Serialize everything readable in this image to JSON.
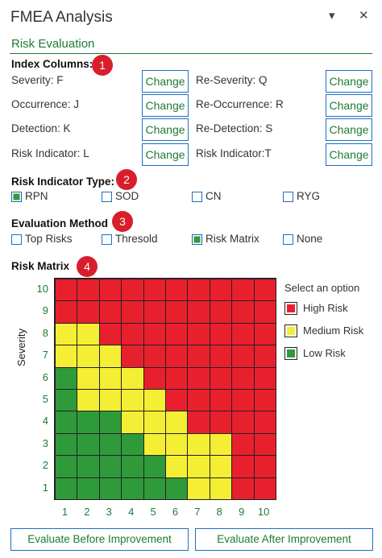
{
  "window": {
    "title": "FMEA Analysis",
    "pin_glyph": "▾",
    "close_glyph": "✕"
  },
  "section": "Risk Evaluation",
  "index_columns": {
    "heading": "Index Columns:",
    "badge": "1",
    "change_label": "Change",
    "left": [
      "Severity: F",
      "Occurrence: J",
      "Detection: K",
      "Risk Indicator: L"
    ],
    "right": [
      "Re-Severity: Q",
      "Re-Occurrence: R",
      "Re-Detection: S",
      "Risk Indicator:T"
    ]
  },
  "risk_indicator_type": {
    "heading": "Risk Indicator Type:",
    "badge": "2",
    "options": [
      {
        "label": "RPN",
        "checked": true
      },
      {
        "label": "SOD",
        "checked": false
      },
      {
        "label": "CN",
        "checked": false
      },
      {
        "label": "RYG",
        "checked": false
      }
    ]
  },
  "evaluation_method": {
    "heading": "Evaluation Method",
    "badge": "3",
    "options": [
      {
        "label": "Top Risks",
        "checked": false
      },
      {
        "label": "Thresold",
        "checked": false
      },
      {
        "label": "Risk Matrix",
        "checked": true
      },
      {
        "label": "None",
        "checked": false
      }
    ]
  },
  "risk_matrix": {
    "heading": "Risk Matrix",
    "badge": "4",
    "y_title": "Severity",
    "x_ticks": [
      "1",
      "2",
      "3",
      "4",
      "5",
      "6",
      "7",
      "8",
      "9",
      "10"
    ],
    "y_ticks": [
      "10",
      "9",
      "8",
      "7",
      "6",
      "5",
      "4",
      "3",
      "2",
      "1"
    ],
    "rows_top_to_bottom": [
      "RRRRRRRRRR",
      "RRRRRRRRRR",
      "YYRRRRRRRR",
      "YYYRRRRRRR",
      "GYYYRRRRRR",
      "GYYYYRRRRR",
      "GGGYYYRRRR",
      "GGGGYYYYRR",
      "GGGGGYYYRR",
      "GGGGGGYYRR"
    ],
    "colors": {
      "R": "#e8202e",
      "Y": "#f4ef34",
      "G": "#2f9a3a"
    },
    "legend_title": "Select an option",
    "legend": [
      {
        "label": "High Risk",
        "color": "#e8202e"
      },
      {
        "label": "Medium Risk",
        "color": "#f4ef34"
      },
      {
        "label": "Low Risk",
        "color": "#2f9a3a"
      }
    ]
  },
  "buttons": {
    "before": "Evaluate Before Improvement",
    "after": "Evaluate After Improvement"
  }
}
